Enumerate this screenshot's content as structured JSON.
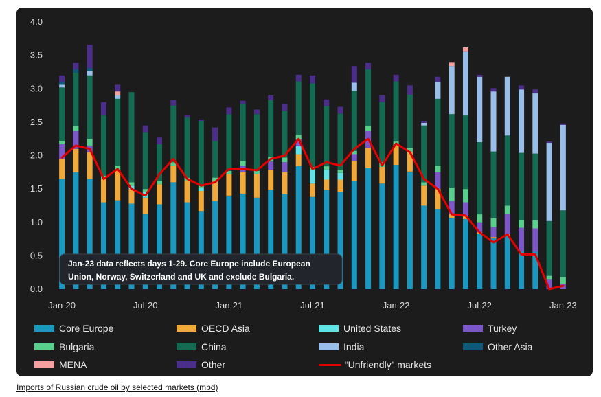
{
  "caption": "Imports of Russian crude oil by selected markets (mbd)",
  "annotation": {
    "line1": "Jan-23 data reflects days 1-29. Core Europe include European",
    "line2": "Union, Norway, Switzerland and UK and exclude Bulgaria."
  },
  "chart_data": {
    "type": "bar",
    "stacked": true,
    "title": "",
    "xlabel": "",
    "ylabel": "",
    "ylim": [
      0,
      4.0
    ],
    "yticks": [
      "0.0",
      "0.5",
      "1.0",
      "1.5",
      "2.0",
      "2.5",
      "3.0",
      "3.5",
      "4.0"
    ],
    "xticks": [
      {
        "index": 0,
        "label": "Jan-20"
      },
      {
        "index": 6,
        "label": "Jul-20"
      },
      {
        "index": 12,
        "label": "Jan-21"
      },
      {
        "index": 18,
        "label": "Jul-21"
      },
      {
        "index": 24,
        "label": "Jan-22"
      },
      {
        "index": 30,
        "label": "Jul-22"
      },
      {
        "index": 36,
        "label": "Jan-23"
      }
    ],
    "categories": [
      "Jan-20",
      "Feb-20",
      "Mar-20",
      "Apr-20",
      "May-20",
      "Jun-20",
      "Jul-20",
      "Aug-20",
      "Sep-20",
      "Oct-20",
      "Nov-20",
      "Dec-20",
      "Jan-21",
      "Feb-21",
      "Mar-21",
      "Apr-21",
      "May-21",
      "Jun-21",
      "Jul-21",
      "Aug-21",
      "Sep-21",
      "Oct-21",
      "Nov-21",
      "Dec-21",
      "Jan-22",
      "Feb-22",
      "Mar-22",
      "Apr-22",
      "May-22",
      "Jun-22",
      "Jul-22",
      "Aug-22",
      "Sep-22",
      "Oct-22",
      "Nov-22",
      "Dec-22",
      "Jan-23"
    ],
    "series": [
      {
        "name": "Core Europe",
        "color": "#1a98c0",
        "values": [
          1.65,
          1.75,
          1.65,
          1.3,
          1.33,
          1.28,
          1.12,
          1.27,
          1.6,
          1.3,
          1.17,
          1.32,
          1.4,
          1.43,
          1.37,
          1.49,
          1.42,
          1.84,
          1.38,
          1.49,
          1.46,
          1.62,
          1.82,
          1.58,
          1.86,
          1.76,
          1.25,
          1.2,
          1.07,
          1.05,
          0.83,
          0.76,
          0.8,
          0.57,
          0.56,
          0.0,
          0.0
        ]
      },
      {
        "name": "OECD Asia",
        "color": "#f0aa3b",
        "values": [
          0.3,
          0.35,
          0.4,
          0.35,
          0.45,
          0.22,
          0.25,
          0.3,
          0.25,
          0.32,
          0.3,
          0.3,
          0.32,
          0.32,
          0.35,
          0.3,
          0.33,
          0.18,
          0.2,
          0.15,
          0.18,
          0.3,
          0.3,
          0.25,
          0.3,
          0.3,
          0.3,
          0.3,
          0.05,
          0.05,
          0.02,
          0.02,
          0.02,
          0.0,
          0.0,
          0.0,
          0.0
        ]
      },
      {
        "name": "United States",
        "color": "#5fe3e6",
        "values": [
          0.0,
          0.0,
          0.0,
          0.0,
          0.0,
          0.05,
          0.08,
          0.0,
          0.0,
          0.0,
          0.05,
          0.0,
          0.0,
          0.0,
          0.0,
          0.0,
          0.0,
          0.12,
          0.2,
          0.15,
          0.1,
          0.0,
          0.0,
          0.0,
          0.0,
          0.0,
          0.0,
          0.0,
          0.0,
          0.0,
          0.0,
          0.0,
          0.0,
          0.0,
          0.0,
          0.0,
          0.0
        ]
      },
      {
        "name": "Turkey",
        "color": "#7b57c8",
        "values": [
          0.22,
          0.27,
          0.1,
          0.0,
          0.0,
          0.0,
          0.0,
          0.0,
          0.0,
          0.0,
          0.0,
          0.0,
          0.0,
          0.1,
          0.0,
          0.12,
          0.15,
          0.1,
          0.0,
          0.0,
          0.0,
          0.1,
          0.25,
          0.0,
          0.0,
          0.0,
          0.0,
          0.25,
          0.2,
          0.2,
          0.15,
          0.15,
          0.3,
          0.35,
          0.35,
          0.15,
          0.08
        ]
      },
      {
        "name": "Bulgaria",
        "color": "#59cf8e",
        "values": [
          0.05,
          0.07,
          0.1,
          0.05,
          0.07,
          0.05,
          0.05,
          0.05,
          0.05,
          0.05,
          0.05,
          0.05,
          0.05,
          0.07,
          0.05,
          0.07,
          0.07,
          0.07,
          0.05,
          0.05,
          0.05,
          0.05,
          0.07,
          0.07,
          0.05,
          0.05,
          0.05,
          0.1,
          0.2,
          0.2,
          0.12,
          0.13,
          0.13,
          0.12,
          0.12,
          0.05,
          0.1
        ]
      },
      {
        "name": "China",
        "color": "#136b52",
        "values": [
          0.8,
          0.8,
          0.95,
          0.9,
          1.0,
          1.35,
          0.85,
          0.55,
          0.85,
          0.9,
          0.95,
          0.55,
          0.85,
          0.85,
          0.85,
          0.85,
          0.7,
          0.8,
          1.25,
          0.9,
          0.84,
          0.9,
          0.85,
          0.9,
          0.9,
          0.8,
          0.85,
          1.0,
          1.1,
          1.1,
          1.08,
          1.0,
          1.05,
          1.0,
          1.0,
          0.82,
          1.0
        ]
      },
      {
        "name": "India",
        "color": "#99bfe8",
        "values": [
          0.04,
          0.0,
          0.06,
          0.0,
          0.05,
          0.0,
          0.0,
          0.0,
          0.0,
          0.0,
          0.0,
          0.0,
          0.0,
          0.0,
          0.0,
          0.0,
          0.0,
          0.0,
          0.0,
          0.0,
          0.0,
          0.12,
          0.0,
          0.0,
          0.0,
          0.0,
          0.04,
          0.25,
          0.72,
          0.96,
          0.98,
          0.9,
          0.88,
          0.95,
          0.9,
          1.17,
          1.28
        ]
      },
      {
        "name": "Other Asia",
        "color": "#0c5a78",
        "values": [
          0.04,
          0.05,
          0.05,
          0.0,
          0.0,
          0.0,
          0.0,
          0.0,
          0.0,
          0.0,
          0.0,
          0.0,
          0.0,
          0.0,
          0.0,
          0.0,
          0.0,
          0.0,
          0.0,
          0.0,
          0.0,
          0.0,
          0.0,
          0.0,
          0.0,
          0.0,
          0.0,
          0.0,
          0.0,
          0.0,
          0.0,
          0.0,
          0.0,
          0.0,
          0.0,
          0.0,
          0.0
        ]
      },
      {
        "name": "MENA",
        "color": "#f5a0a0",
        "values": [
          0.0,
          0.0,
          0.0,
          0.0,
          0.06,
          0.0,
          0.0,
          0.0,
          0.0,
          0.0,
          0.0,
          0.0,
          0.0,
          0.0,
          0.0,
          0.0,
          0.0,
          0.0,
          0.0,
          0.0,
          0.0,
          0.0,
          0.0,
          0.0,
          0.0,
          0.0,
          0.0,
          0.0,
          0.06,
          0.06,
          0.0,
          0.0,
          0.0,
          0.0,
          0.0,
          0.0,
          0.0
        ]
      },
      {
        "name": "Other",
        "color": "#4b2e8a",
        "values": [
          0.1,
          0.1,
          0.35,
          0.2,
          0.1,
          0.0,
          0.1,
          0.1,
          0.08,
          0.03,
          0.02,
          0.2,
          0.1,
          0.05,
          0.07,
          0.07,
          0.1,
          0.1,
          0.12,
          0.1,
          0.1,
          0.25,
          0.1,
          0.1,
          0.1,
          0.14,
          0.03,
          0.08,
          0.0,
          0.0,
          0.03,
          0.05,
          0.0,
          0.06,
          0.06,
          0.02,
          0.02
        ]
      }
    ],
    "line_series": {
      "name": "“Unfriendly” markets",
      "color": "#e50000",
      "values": [
        1.97,
        2.15,
        2.1,
        1.65,
        1.8,
        1.5,
        1.4,
        1.72,
        1.95,
        1.65,
        1.55,
        1.6,
        1.8,
        1.8,
        1.78,
        1.95,
        2.0,
        2.25,
        1.8,
        1.9,
        1.85,
        2.1,
        2.25,
        1.85,
        2.18,
        2.05,
        1.65,
        1.5,
        1.12,
        1.1,
        0.85,
        0.7,
        0.82,
        0.52,
        0.52,
        0.0,
        0.05
      ]
    }
  }
}
